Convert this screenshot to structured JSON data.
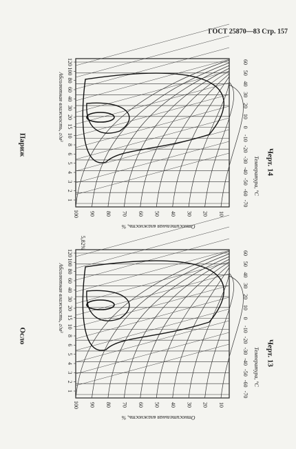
{
  "header": {
    "text": "ГОСТ 25870—83 Стр. 157"
  },
  "figures": [
    {
      "title": "Париж",
      "caption": "Черт. 14",
      "abs_humidity_label": "Абсолютная влажность, г/м³",
      "temperature_label": "Температура, °С",
      "rh_label": "Относительная влажность, %",
      "temperature_ticks": [
        60,
        50,
        40,
        30,
        20,
        10,
        0,
        -10,
        -20,
        -30,
        -40,
        -50,
        -60,
        -70
      ],
      "rh_ticks": [
        100,
        90,
        80,
        70,
        60,
        50,
        40,
        30,
        20,
        10
      ],
      "ah_ticks": [
        120,
        100,
        80,
        60,
        40,
        30,
        20,
        15,
        10,
        8,
        6,
        5,
        4,
        3,
        2,
        1
      ]
    },
    {
      "title": "Осло",
      "caption": "Черт. 13",
      "abs_humidity_label": "Абсолютная влажность, г/м³",
      "temperature_label": "Температура, °С",
      "rh_label": "Относительная влажность, %",
      "corner_label": "5,82%",
      "temperature_ticks": [
        60,
        50,
        40,
        30,
        20,
        10,
        0,
        -10,
        -20,
        -30,
        -40,
        -50,
        -60,
        -70
      ],
      "rh_ticks": [
        100,
        90,
        80,
        70,
        60,
        50,
        40,
        30,
        20,
        10
      ],
      "ah_ticks": [
        120,
        100,
        80,
        60,
        40,
        30,
        20,
        15,
        10,
        8,
        6,
        5,
        4,
        3,
        2,
        1
      ]
    }
  ]
}
